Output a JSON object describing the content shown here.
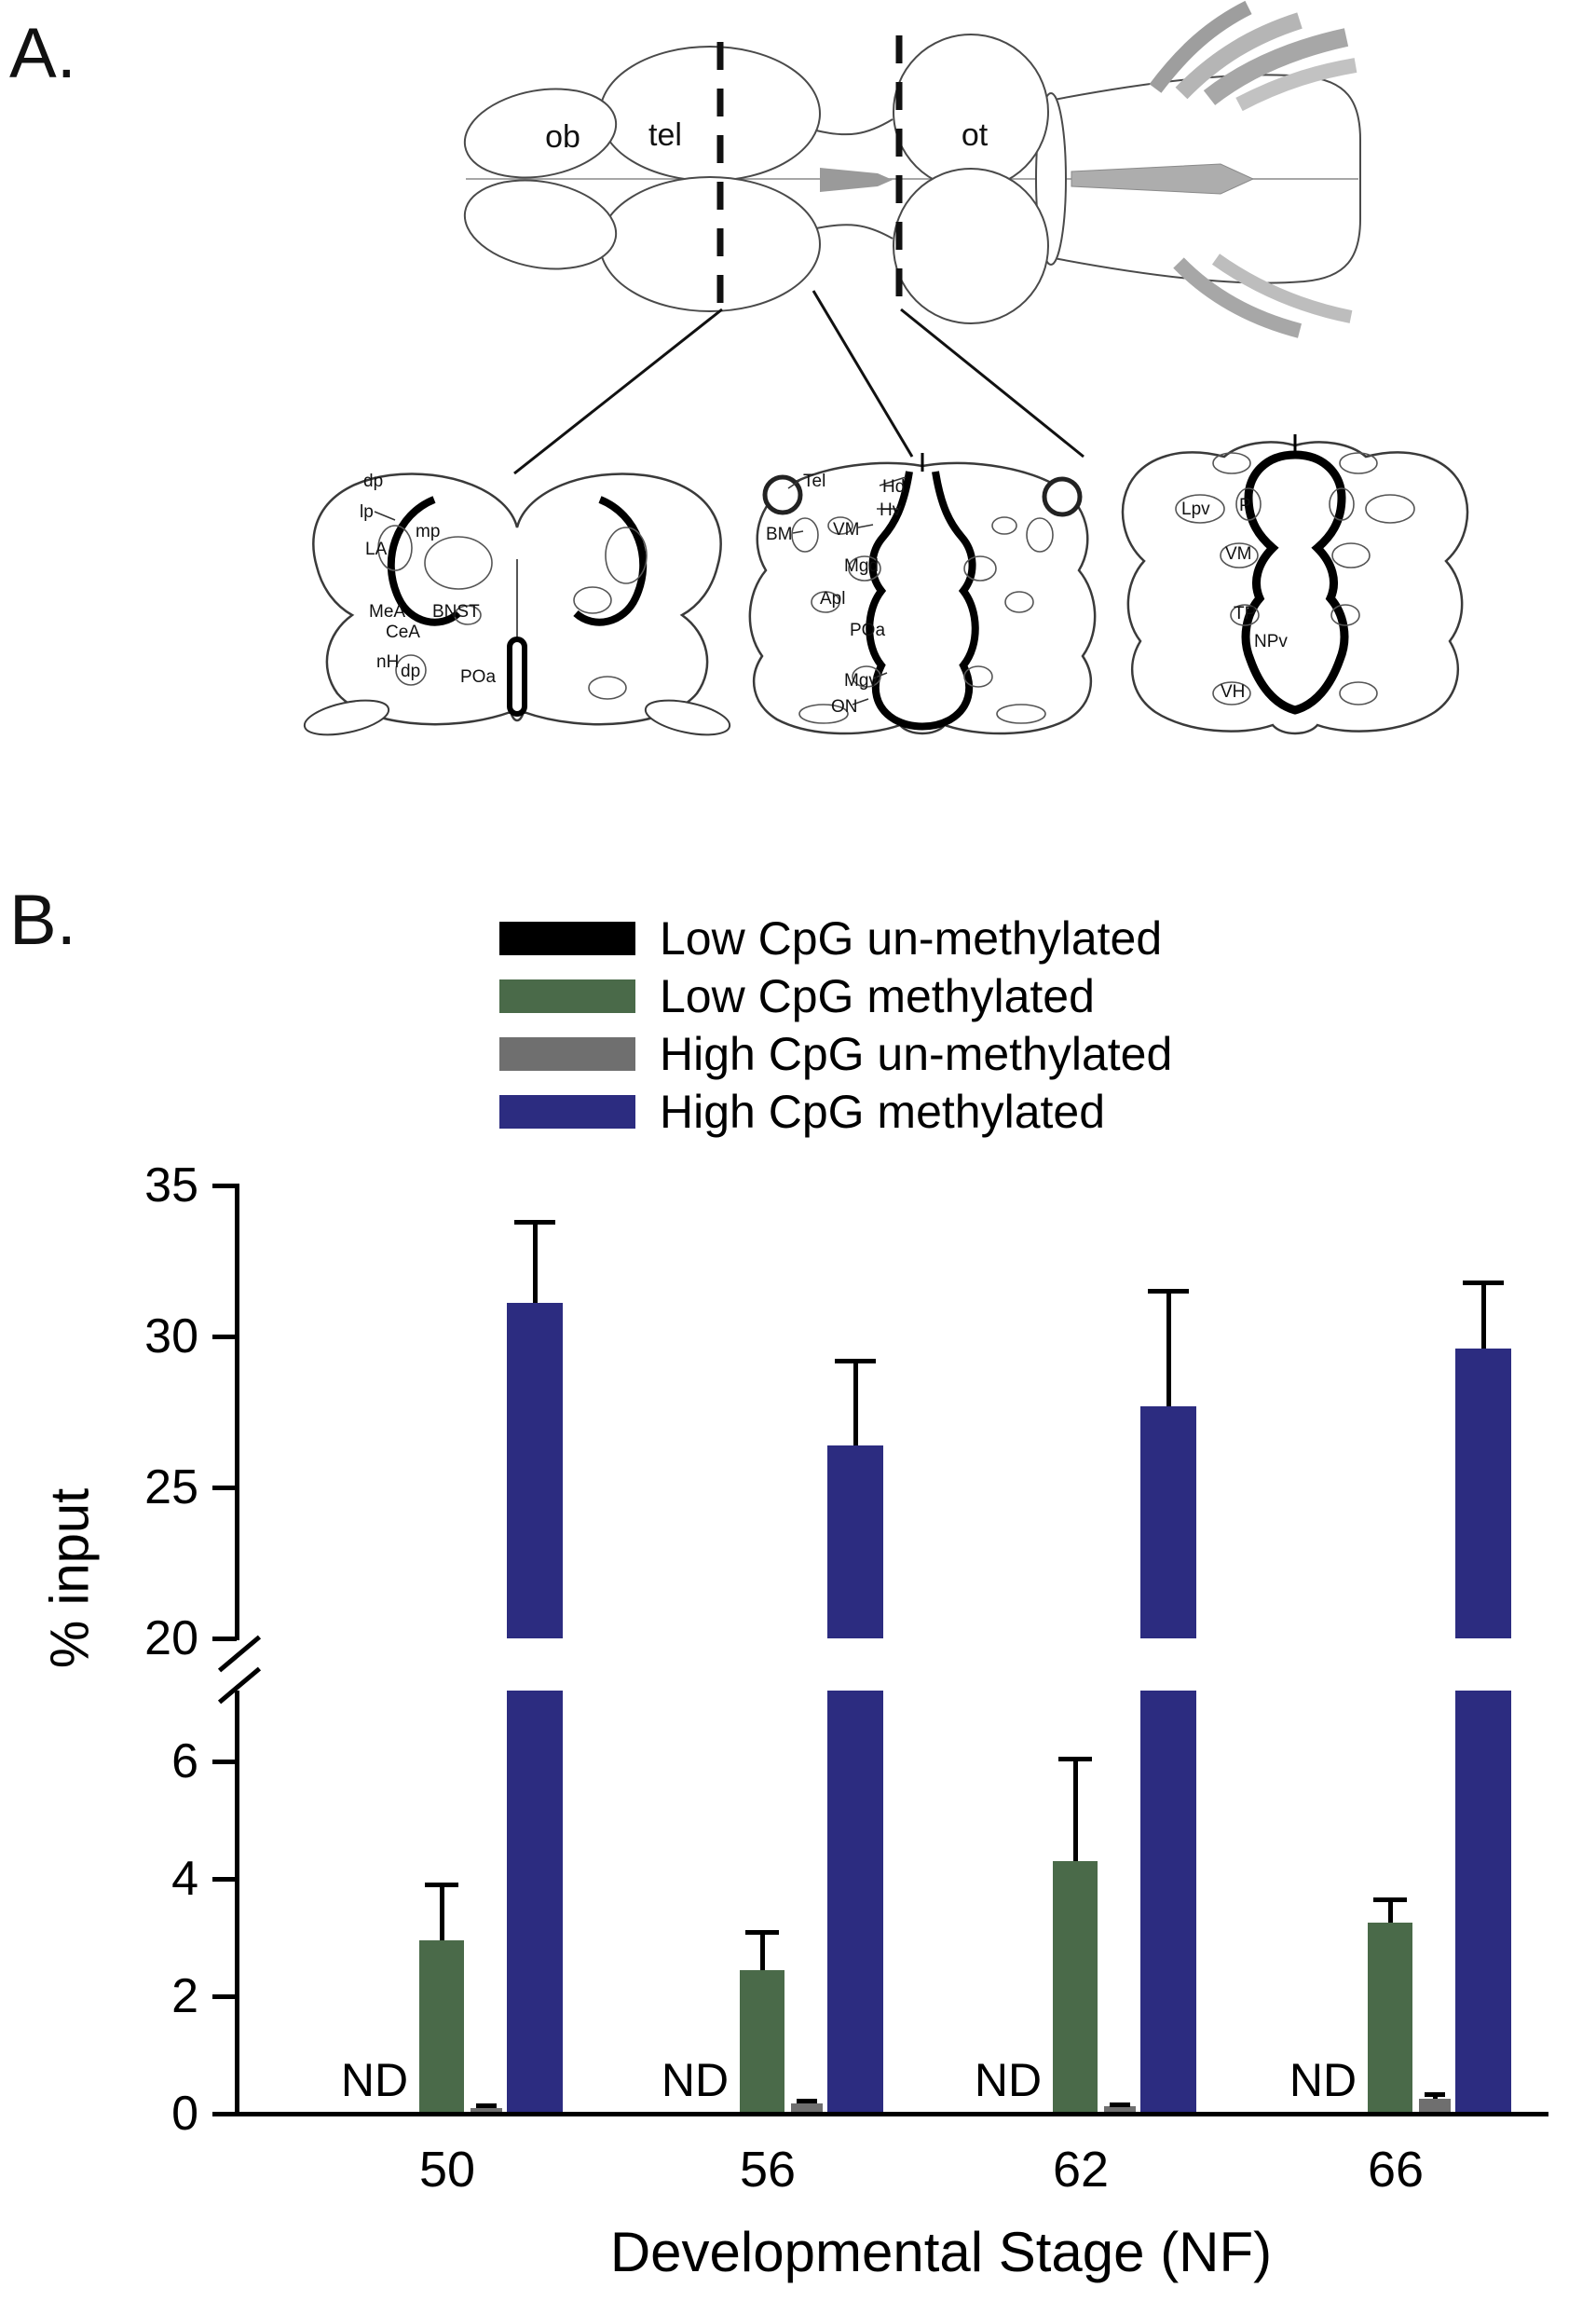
{
  "figure": {
    "panel_a": {
      "label": "A.",
      "brain_labels": {
        "ob": "ob",
        "tel": "tel",
        "ot": "ot"
      },
      "section_left_labels": [
        "dp",
        "lp",
        "mp",
        "LA",
        "MeA",
        "CeA",
        "BNST",
        "nH",
        "dp",
        "POa"
      ],
      "section_middle_labels": [
        "Tel",
        "Hd",
        "Hv",
        "BM",
        "VM",
        "Mgd",
        "Apl",
        "POa",
        "Mgv",
        "ON"
      ],
      "section_right_labels": [
        "Lpv",
        "P",
        "VM",
        "TP",
        "NPv",
        "VH"
      ]
    },
    "panel_b": {
      "label": "B.",
      "axis": {
        "upper_ticks": [
          35,
          30,
          25,
          20
        ],
        "lower_ticks": [
          6,
          4,
          2,
          0
        ]
      }
    }
  },
  "chart_data": {
    "type": "bar",
    "title": "",
    "categories": [
      "50",
      "56",
      "62",
      "66"
    ],
    "xlabel": "Developmental Stage (NF)",
    "ylabel": "% input",
    "axis_break": {
      "lower_range": [
        0,
        6
      ],
      "upper_range": [
        20,
        35
      ]
    },
    "grid": false,
    "legend_position": "top",
    "nd_text": "ND",
    "nd_series": "Low CpG un-methylated",
    "series": [
      {
        "name": "Low CpG un-methylated",
        "color": "#000000",
        "values": [
          null,
          null,
          null,
          null
        ],
        "not_detected": true
      },
      {
        "name": "Low CpG methylated",
        "color": "#4a6a49",
        "values": [
          2.95,
          2.45,
          4.3,
          3.25
        ],
        "errors": [
          0.95,
          0.65,
          1.75,
          0.4
        ]
      },
      {
        "name": "High CpG un-methylated",
        "color": "#6f6f6f",
        "values": [
          0.1,
          0.18,
          0.12,
          0.25
        ],
        "errors": [
          0.04,
          0.05,
          0.04,
          0.08
        ]
      },
      {
        "name": "High CpG methylated",
        "color": "#2c2c80",
        "values": [
          31.1,
          26.4,
          27.7,
          29.6
        ],
        "errors": [
          2.7,
          2.8,
          3.8,
          2.2
        ]
      }
    ]
  }
}
